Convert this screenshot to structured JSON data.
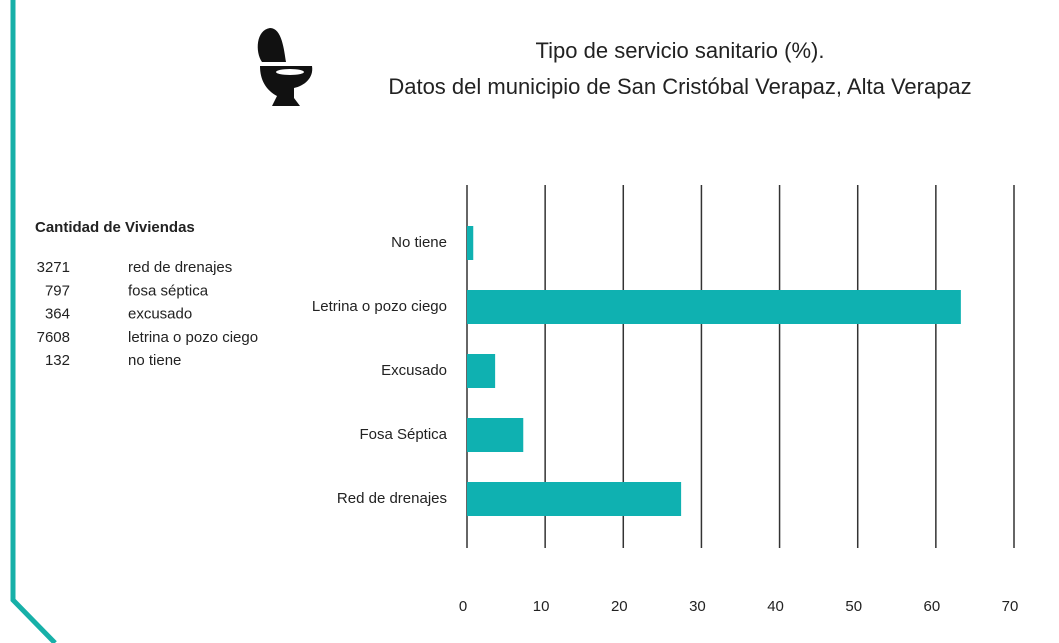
{
  "chart_data": {
    "type": "barh",
    "title": "Tipo de servicio sanitario (%).",
    "subtitle": "Datos del municipio de San Cristóbal Verapaz, Alta Verapaz",
    "categories": [
      "No tiene",
      "Letrina o pozo ciego",
      "Excusado",
      "Fosa Séptica",
      "Red de drenajes"
    ],
    "values": [
      0.8,
      63.2,
      3.6,
      7.2,
      27.4
    ],
    "color": "#0fb1b1",
    "xlim": [
      0,
      70
    ],
    "xticks": [
      0,
      10,
      20,
      30,
      40,
      50,
      60,
      70
    ],
    "grid": true
  },
  "table": {
    "title": "Cantidad de Viviendas",
    "rows": [
      [
        3271,
        "red de drenajes"
      ],
      [
        797,
        "fosa séptica"
      ],
      [
        364,
        "excusado"
      ],
      [
        7608,
        "letrina o pozo ciego"
      ],
      [
        132,
        "no tiene"
      ]
    ]
  }
}
